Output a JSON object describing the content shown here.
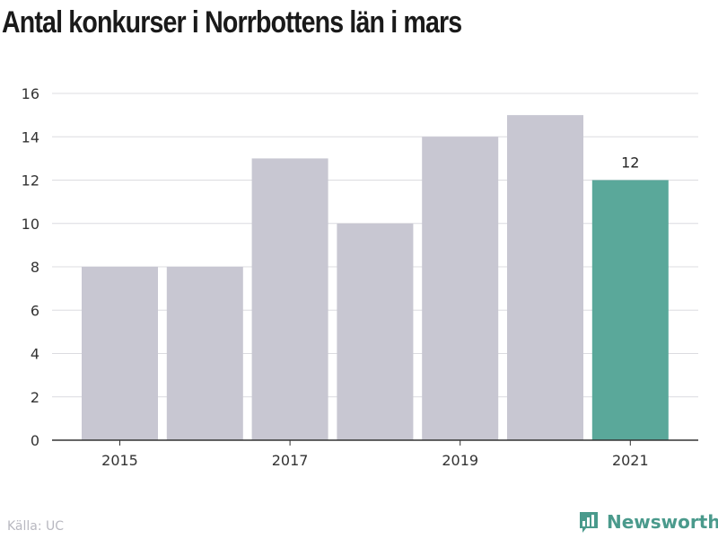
{
  "title": "Antal konkurser i Norrbottens län i mars",
  "source": "Källa: UC",
  "brand": {
    "name": "Newsworthy",
    "icon": "bar-chart-icon",
    "color": "#4a9a8c"
  },
  "chart_data": {
    "type": "bar",
    "categories": [
      "2015",
      "2016",
      "2017",
      "2018",
      "2019",
      "2020",
      "2021"
    ],
    "values": [
      8,
      8,
      13,
      10,
      14,
      15,
      12
    ],
    "x_tick_labels": [
      "2015",
      "",
      "2017",
      "",
      "2019",
      "",
      "2021"
    ],
    "y_ticks": [
      0,
      2,
      4,
      6,
      8,
      10,
      12,
      14,
      16
    ],
    "ylim": [
      0,
      16
    ],
    "grid": true,
    "bar_color": "#c8c7d2",
    "highlight_color": "#5aa89a",
    "highlight_index": 6,
    "data_labels": [
      {
        "index": 6,
        "text": "12"
      }
    ]
  }
}
